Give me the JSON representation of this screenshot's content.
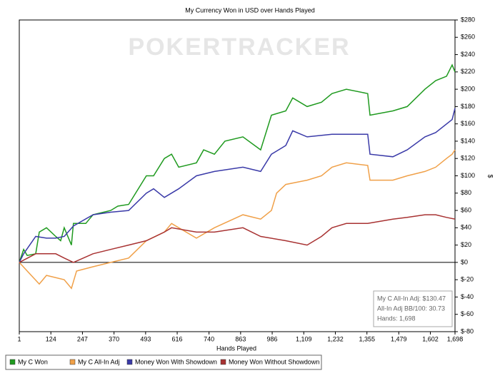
{
  "chart_data": {
    "type": "line",
    "title": "My Currency Won in USD over Hands Played",
    "watermark": "POKERTRACKER",
    "x_label": "Hands Played",
    "y_label": "$",
    "xlim": [
      1,
      1698
    ],
    "ylim": [
      -80,
      280
    ],
    "xticks": [
      1,
      124,
      247,
      370,
      493,
      616,
      740,
      863,
      986,
      {
        "value": 1109,
        "label": "1,109"
      },
      {
        "value": 1232,
        "label": "1,232"
      },
      {
        "value": 1355,
        "label": "1,355"
      },
      {
        "value": 1479,
        "label": "1,479"
      },
      {
        "value": 1602,
        "label": "1,602"
      },
      {
        "value": 1698,
        "label": "1,698"
      }
    ],
    "yticks": [
      {
        "value": -80,
        "label": "$-80"
      },
      {
        "value": -60,
        "label": "$-60"
      },
      {
        "value": -40,
        "label": "$-40"
      },
      {
        "value": -20,
        "label": "$-20"
      },
      {
        "value": 0,
        "label": "$0"
      },
      {
        "value": 20,
        "label": "$20"
      },
      {
        "value": 40,
        "label": "$40"
      },
      {
        "value": 60,
        "label": "$60"
      },
      {
        "value": 80,
        "label": "$80"
      },
      {
        "value": 100,
        "label": "$100"
      },
      {
        "value": 120,
        "label": "$120"
      },
      {
        "value": 140,
        "label": "$140"
      },
      {
        "value": 160,
        "label": "$160"
      },
      {
        "value": 180,
        "label": "$180"
      },
      {
        "value": 200,
        "label": "$200"
      },
      {
        "value": 220,
        "label": "$220"
      },
      {
        "value": 240,
        "label": "$240"
      },
      {
        "value": 260,
        "label": "$260"
      },
      {
        "value": 280,
        "label": "$280"
      }
    ],
    "y_axis_side": "right",
    "zero_line": true,
    "grid": false,
    "legend_position": "bottom",
    "annotation": [
      "My C All-In Adj: $130.47",
      "All-In Adj BB/100: 30.73",
      "Hands: 1,698"
    ],
    "series": [
      {
        "name": "My C Won",
        "color": "#1f9a1f",
        "x": [
          1,
          18,
          32,
          65,
          79,
          107,
          143,
          162,
          176,
          204,
          212,
          260,
          288,
          357,
          385,
          427,
          496,
          524,
          566,
          594,
          622,
          691,
          719,
          761,
          802,
          872,
          941,
          983,
          1039,
          1066,
          1122,
          1178,
          1219,
          1275,
          1358,
          1367,
          1456,
          1512,
          1581,
          1623,
          1665,
          1687,
          1698
        ],
        "values": [
          0,
          15,
          8,
          10,
          35,
          40,
          30,
          25,
          40,
          20,
          45,
          45,
          55,
          60,
          65,
          67,
          100,
          100,
          120,
          125,
          110,
          115,
          130,
          125,
          140,
          145,
          130,
          170,
          175,
          190,
          180,
          185,
          195,
          200,
          195,
          170,
          175,
          180,
          200,
          210,
          215,
          228,
          220
        ]
      },
      {
        "name": "My C All-In Adj",
        "color": "#f0a048",
        "x": [
          1,
          32,
          79,
          107,
          176,
          204,
          224,
          288,
          357,
          427,
          496,
          566,
          594,
          622,
          691,
          761,
          872,
          941,
          983,
          1003,
          1039,
          1122,
          1178,
          1219,
          1275,
          1358,
          1367,
          1456,
          1512,
          1581,
          1623,
          1665,
          1687,
          1698
        ],
        "values": [
          0,
          -10,
          -25,
          -15,
          -20,
          -30,
          -10,
          -5,
          0,
          5,
          25,
          35,
          45,
          40,
          28,
          40,
          55,
          50,
          60,
          80,
          90,
          95,
          100,
          110,
          115,
          112,
          95,
          95,
          100,
          105,
          110,
          120,
          125,
          130
        ]
      },
      {
        "name": "Money Won With Showdown",
        "color": "#3a3aa8",
        "x": [
          1,
          18,
          65,
          107,
          143,
          176,
          212,
          288,
          357,
          427,
          496,
          524,
          566,
          622,
          691,
          761,
          872,
          941,
          983,
          1039,
          1066,
          1122,
          1219,
          1358,
          1367,
          1456,
          1512,
          1581,
          1623,
          1687,
          1698
        ],
        "values": [
          0,
          10,
          30,
          28,
          28,
          30,
          42,
          55,
          58,
          60,
          80,
          85,
          75,
          85,
          100,
          105,
          110,
          105,
          125,
          135,
          152,
          145,
          148,
          148,
          125,
          122,
          130,
          145,
          150,
          165,
          178
        ]
      },
      {
        "name": "Money Won Without Showdown",
        "color": "#a83232",
        "x": [
          1,
          65,
          143,
          176,
          212,
          288,
          357,
          427,
          496,
          566,
          594,
          691,
          761,
          872,
          941,
          1039,
          1122,
          1178,
          1219,
          1275,
          1358,
          1456,
          1512,
          1581,
          1623,
          1665,
          1698
        ],
        "values": [
          0,
          10,
          10,
          5,
          0,
          10,
          15,
          20,
          25,
          35,
          40,
          35,
          35,
          40,
          30,
          25,
          20,
          30,
          40,
          45,
          45,
          50,
          52,
          55,
          55,
          52,
          50
        ]
      }
    ]
  }
}
